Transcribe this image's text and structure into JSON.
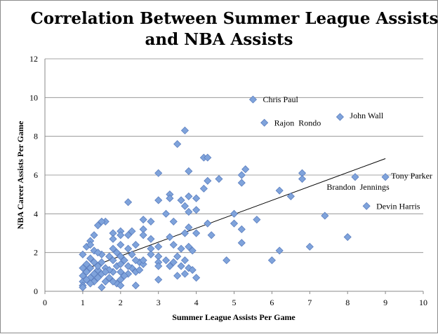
{
  "chart_data": {
    "type": "scatter",
    "title": [
      "Correlation Between Summer League Assists",
      "and NBA Assists"
    ],
    "xlabel": "Summer League Assists Per Game",
    "ylabel": "NBA Career Assists Per Game",
    "xlim": [
      0,
      10
    ],
    "ylim": [
      0,
      12
    ],
    "x_ticks": [
      "0",
      "1",
      "2",
      "3",
      "4",
      "5",
      "6",
      "7",
      "8",
      "9",
      "10"
    ],
    "y_ticks": [
      "0",
      "2",
      "4",
      "6",
      "8",
      "10",
      "12"
    ],
    "grid": "horizontal",
    "marker_color": "#7FA3DB",
    "trendline": {
      "type": "linear",
      "x": [
        1,
        9
      ],
      "y": [
        1.1,
        6.85
      ]
    },
    "annotations": [
      {
        "text": "Chris Paul",
        "x": 5.5,
        "y": 9.9
      },
      {
        "text": "Rajon  Rondo",
        "x": 5.8,
        "y": 8.7
      },
      {
        "text": "John Wall",
        "x": 7.8,
        "y": 9.0
      },
      {
        "text": "Tony Parker",
        "x": 9.0,
        "y": 5.9
      },
      {
        "text": "Brandon  Jennings",
        "x": 8.2,
        "y": 5.9
      },
      {
        "text": "Devin Harris",
        "x": 8.5,
        "y": 4.4
      }
    ],
    "points": [
      [
        5.5,
        9.9
      ],
      [
        5.8,
        8.7
      ],
      [
        7.8,
        9.0
      ],
      [
        9.0,
        5.9
      ],
      [
        8.2,
        5.9
      ],
      [
        8.5,
        4.4
      ],
      [
        3.7,
        8.3
      ],
      [
        3.5,
        7.6
      ],
      [
        4.2,
        6.9
      ],
      [
        4.3,
        6.9
      ],
      [
        3.8,
        6.2
      ],
      [
        3.0,
        6.1
      ],
      [
        5.3,
        6.3
      ],
      [
        5.2,
        6.0
      ],
      [
        4.6,
        5.8
      ],
      [
        4.3,
        5.7
      ],
      [
        5.2,
        5.6
      ],
      [
        4.2,
        5.3
      ],
      [
        6.8,
        6.1
      ],
      [
        6.8,
        5.8
      ],
      [
        6.2,
        5.2
      ],
      [
        6.5,
        4.9
      ],
      [
        3.3,
        5.0
      ],
      [
        3.3,
        4.8
      ],
      [
        3.8,
        4.9
      ],
      [
        4.0,
        4.8
      ],
      [
        3.0,
        4.7
      ],
      [
        3.6,
        4.7
      ],
      [
        3.7,
        4.4
      ],
      [
        2.2,
        4.6
      ],
      [
        4.0,
        4.2
      ],
      [
        3.2,
        4.0
      ],
      [
        3.8,
        4.1
      ],
      [
        5.0,
        4.0
      ],
      [
        7.4,
        3.9
      ],
      [
        5.6,
        3.7
      ],
      [
        5.0,
        3.5
      ],
      [
        4.3,
        3.5
      ],
      [
        3.4,
        3.6
      ],
      [
        2.6,
        3.7
      ],
      [
        2.8,
        3.6
      ],
      [
        3.8,
        3.3
      ],
      [
        5.2,
        3.2
      ],
      [
        2.6,
        3.2
      ],
      [
        3.7,
        3.0
      ],
      [
        4.4,
        2.9
      ],
      [
        4.0,
        3.0
      ],
      [
        2.6,
        2.9
      ],
      [
        2.8,
        2.7
      ],
      [
        3.3,
        2.8
      ],
      [
        8.0,
        2.8
      ],
      [
        5.2,
        2.5
      ],
      [
        7.0,
        2.3
      ],
      [
        6.2,
        2.1
      ],
      [
        4.8,
        1.6
      ],
      [
        6.0,
        1.6
      ],
      [
        4.0,
        0.7
      ],
      [
        3.0,
        0.6
      ],
      [
        3.0,
        2.3
      ],
      [
        3.4,
        2.4
      ],
      [
        3.6,
        2.2
      ],
      [
        3.8,
        2.3
      ],
      [
        3.5,
        1.8
      ],
      [
        3.7,
        1.6
      ],
      [
        3.9,
        2.1
      ],
      [
        3.4,
        1.5
      ],
      [
        3.6,
        1.3
      ],
      [
        3.8,
        1.2
      ],
      [
        3.9,
        1.1
      ],
      [
        3.5,
        0.8
      ],
      [
        3.7,
        0.9
      ],
      [
        3.3,
        1.3
      ],
      [
        2.8,
        2.2
      ],
      [
        2.8,
        1.9
      ],
      [
        3.0,
        1.8
      ],
      [
        3.0,
        1.5
      ],
      [
        3.0,
        1.3
      ],
      [
        3.2,
        1.6
      ],
      [
        2.5,
        1.5
      ],
      [
        2.6,
        1.4
      ],
      [
        2.4,
        1.6
      ],
      [
        2.3,
        1.2
      ],
      [
        2.4,
        1.0
      ],
      [
        2.2,
        0.9
      ],
      [
        2.4,
        0.3
      ],
      [
        2.0,
        0.6
      ],
      [
        2.2,
        2.9
      ],
      [
        2.3,
        3.1
      ],
      [
        2.0,
        3.1
      ],
      [
        2.0,
        2.9
      ],
      [
        1.8,
        3.0
      ],
      [
        1.8,
        2.7
      ],
      [
        2.4,
        2.4
      ],
      [
        2.2,
        2.2
      ],
      [
        2.0,
        2.4
      ],
      [
        1.8,
        2.2
      ],
      [
        1.6,
        3.6
      ],
      [
        1.5,
        3.6
      ],
      [
        1.4,
        3.4
      ],
      [
        1.3,
        2.9
      ],
      [
        1.2,
        2.6
      ],
      [
        1.1,
        2.3
      ],
      [
        1.0,
        1.9
      ],
      [
        1.2,
        2.4
      ],
      [
        1.3,
        2.1
      ],
      [
        1.5,
        1.9
      ],
      [
        1.7,
        1.8
      ],
      [
        1.4,
        2.0
      ],
      [
        1.2,
        1.7
      ],
      [
        1.3,
        1.5
      ],
      [
        1.5,
        1.5
      ],
      [
        1.6,
        1.2
      ],
      [
        1.8,
        1.6
      ],
      [
        1.9,
        1.3
      ],
      [
        2.0,
        1.8
      ],
      [
        2.0,
        1.4
      ],
      [
        2.0,
        1.0
      ],
      [
        1.8,
        1.0
      ],
      [
        1.7,
        0.7
      ],
      [
        1.9,
        0.4
      ],
      [
        2.0,
        0.3
      ],
      [
        1.5,
        0.2
      ],
      [
        1.3,
        0.5
      ],
      [
        1.2,
        0.7
      ],
      [
        1.1,
        1.0
      ],
      [
        1.0,
        1.2
      ],
      [
        1.0,
        0.8
      ],
      [
        1.0,
        0.5
      ],
      [
        1.0,
        0.3
      ],
      [
        1.0,
        0.2
      ],
      [
        1.1,
        0.6
      ],
      [
        1.2,
        1.2
      ],
      [
        1.3,
        0.9
      ],
      [
        1.4,
        1.1
      ],
      [
        1.4,
        0.7
      ],
      [
        1.5,
        0.9
      ],
      [
        1.6,
        0.5
      ],
      [
        1.7,
        1.1
      ],
      [
        1.8,
        0.5
      ],
      [
        2.1,
        1.6
      ],
      [
        2.1,
        0.8
      ],
      [
        2.2,
        1.3
      ],
      [
        2.3,
        1.9
      ],
      [
        2.5,
        1.1
      ],
      [
        1.1,
        1.4
      ],
      [
        1.2,
        0.4
      ],
      [
        1.4,
        1.3
      ],
      [
        1.6,
        1.0
      ],
      [
        1.9,
        2.0
      ],
      [
        2.6,
        1.6
      ]
    ]
  }
}
